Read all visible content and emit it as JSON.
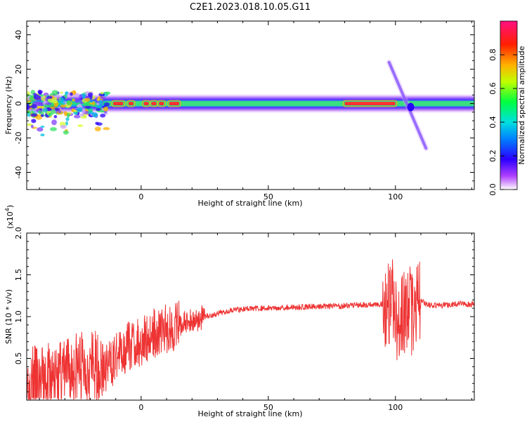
{
  "title": "C2E1.2023.018.10.05.G11",
  "colors": {
    "snr_line": "#ee3333",
    "axis": "#000000"
  },
  "chart_data": [
    {
      "type": "heatmap",
      "xlabel": "Height of straight line (km)",
      "ylabel": "Frequency (Hz)",
      "xlim": [
        -45,
        131
      ],
      "ylim": [
        -50,
        48
      ],
      "xticks": [
        0,
        50,
        100
      ],
      "yticks": [
        40,
        20,
        0,
        -20,
        -40
      ],
      "grid": false,
      "colorbar": {
        "label": "Normalized spectral amplitude",
        "range": [
          0.0,
          1.0
        ],
        "ticks": [
          "0.0",
          "0.2",
          "0.4",
          "0.6",
          "0.8"
        ]
      }
    },
    {
      "type": "line",
      "xlabel": "Height of straight line (km)",
      "ylabel": "SNR (10 * v/v)",
      "yscale_note": "(x10",
      "yscale_exp": "4",
      "yscale_close": ")",
      "xlim": [
        -45,
        131
      ],
      "ylim": [
        0,
        20000
      ],
      "xticks": [
        0,
        50,
        100
      ],
      "yticks": [
        {
          "value": 5000,
          "label": "0.5"
        },
        {
          "value": 10000,
          "label": "1.0"
        },
        {
          "value": 15000,
          "label": "1.5"
        },
        {
          "value": 20000,
          "label": "2.0"
        }
      ],
      "series": [
        {
          "x": [
            -45,
            -40,
            -35,
            -30,
            -25,
            -20,
            -15,
            -10,
            -5,
            0,
            5,
            10,
            15,
            20,
            25,
            30,
            35,
            40,
            45,
            50,
            55,
            60,
            65,
            70,
            75,
            80,
            85,
            90,
            95,
            97,
            99,
            100,
            102,
            104,
            105,
            106,
            107,
            108,
            110,
            112,
            115,
            120,
            125,
            131
          ],
          "y": [
            2500,
            2000,
            2500,
            3000,
            4000,
            4000,
            3500,
            5000,
            6500,
            7000,
            8000,
            8500,
            9000,
            9500,
            10000,
            10300,
            10800,
            10900,
            11000,
            11000,
            11100,
            11100,
            11200,
            11200,
            11200,
            11300,
            11400,
            11400,
            11500,
            11600,
            12000,
            10000,
            9000,
            11500,
            12000,
            10000,
            10000,
            11500,
            12000,
            11500,
            11300,
            11400,
            11500,
            11500
          ]
        }
      ]
    }
  ]
}
